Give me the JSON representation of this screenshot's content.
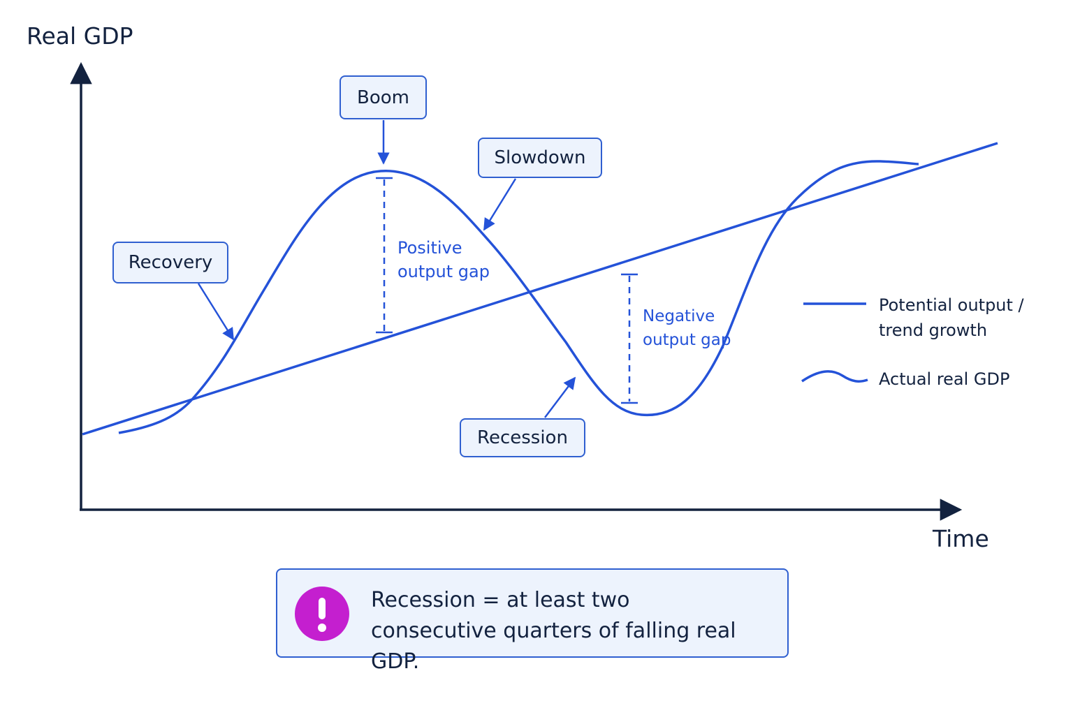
{
  "axes": {
    "y_label": "Real GDP",
    "x_label": "Time"
  },
  "stages": {
    "boom": "Boom",
    "slowdown": "Slowdown",
    "recovery": "Recovery",
    "recession": "Recession"
  },
  "gaps": {
    "positive": [
      "Positive",
      "output gap"
    ],
    "negative": [
      "Negative",
      "output gap"
    ]
  },
  "legend": {
    "potential": [
      "Potential output /",
      "trend growth"
    ],
    "actual": "Actual real GDP"
  },
  "note": {
    "icon": "exclamation-icon",
    "lines": [
      "Recession = at least two",
      "consecutive quarters of falling real GDP."
    ]
  },
  "colors": {
    "axis": "#13223f",
    "line": "#2452d8",
    "box_border": "#2f5fd0",
    "box_fill": "#edf3fd",
    "alert": "#c41fcf"
  }
}
